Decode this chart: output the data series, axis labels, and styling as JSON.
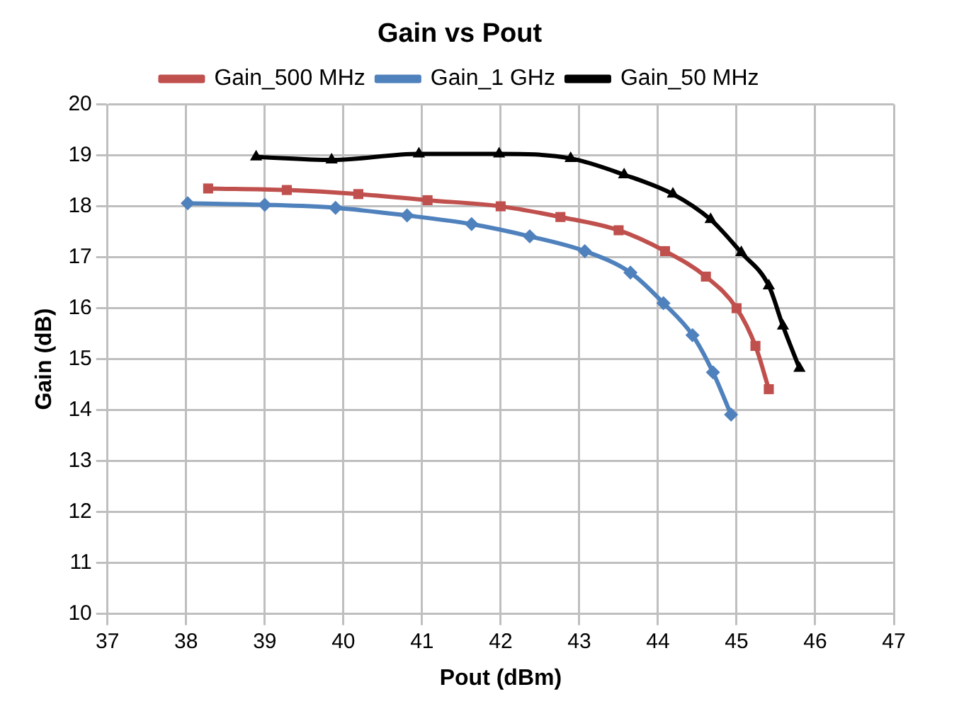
{
  "chart_data": {
    "type": "line",
    "title": "Gain vs Pout",
    "xlabel": "Pout (dBm)",
    "ylabel": "Gain (dB)",
    "xlim": [
      37,
      47
    ],
    "xticks": [
      37,
      38,
      39,
      40,
      41,
      42,
      43,
      44,
      45,
      46,
      47
    ],
    "ylim": [
      10,
      20
    ],
    "yticks": [
      10,
      11,
      12,
      13,
      14,
      15,
      16,
      17,
      18,
      19,
      20
    ],
    "grid": true,
    "legend": "top",
    "line_style": "solid",
    "series": [
      {
        "name": "Gain_500 MHz",
        "color": "#c0504d",
        "marker": "square",
        "x": [
          38.28,
          39.28,
          40.19,
          41.07,
          42.0,
          42.76,
          43.5,
          44.09,
          44.61,
          45.0,
          45.24,
          45.41
        ],
        "values": [
          18.35,
          18.32,
          18.24,
          18.12,
          18.0,
          17.79,
          17.53,
          17.12,
          16.62,
          16.0,
          15.26,
          14.41
        ]
      },
      {
        "name": "Gain_1 GHz",
        "color": "#4f81bd",
        "marker": "diamond",
        "x": [
          38.02,
          39.0,
          39.9,
          40.81,
          41.63,
          42.37,
          43.07,
          43.65,
          44.07,
          44.44,
          44.7,
          44.93
        ],
        "values": [
          18.06,
          18.03,
          17.97,
          17.82,
          17.65,
          17.41,
          17.12,
          16.7,
          16.1,
          15.47,
          14.74,
          13.91
        ]
      },
      {
        "name": "Gain_50 MHz",
        "color": "#000000",
        "marker": "triangle",
        "x": [
          38.89,
          39.85,
          40.96,
          41.98,
          42.89,
          43.57,
          44.19,
          44.67,
          45.06,
          45.41,
          45.59,
          45.8
        ],
        "values": [
          18.97,
          18.91,
          19.03,
          19.03,
          18.94,
          18.62,
          18.24,
          17.74,
          17.09,
          16.44,
          15.65,
          14.82
        ]
      }
    ]
  }
}
